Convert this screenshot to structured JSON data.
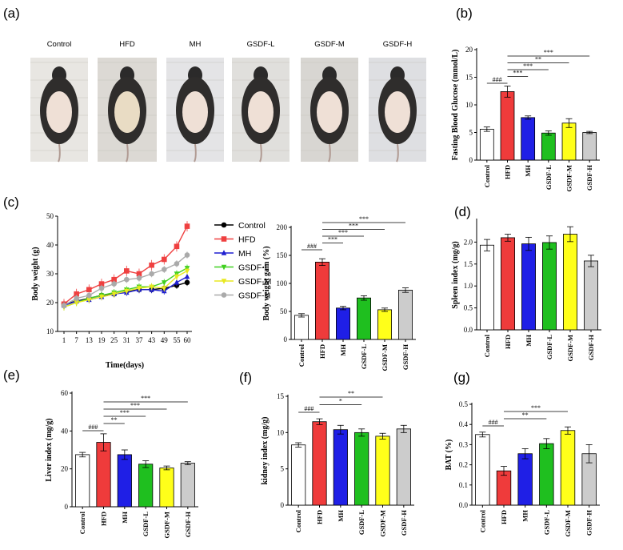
{
  "photos": {
    "panel": "(a)",
    "labels": [
      "Control",
      "HFD",
      "MH",
      "GSDF-L",
      "GSDF-M",
      "GSDF-H"
    ]
  },
  "colors": {
    "Control": "#ffffff",
    "HFD": "#ef3b3b",
    "MH": "#1f1fe6",
    "GSDF-L": "#1fbf1f",
    "GSDF-M": "#ffff1a",
    "GSDF-H": "#cccccc"
  },
  "line_colors": [
    "#000000",
    "#ef4040",
    "#1f1fd0",
    "#40d020",
    "#e8e820",
    "#aaaaaa"
  ],
  "chart_data": [
    {
      "id": "b",
      "panel": "(b)",
      "type": "bar",
      "ylabel": "Fasting Blood Glucose (mmol/L)",
      "categories": [
        "Control",
        "HFD",
        "MH",
        "GSDF-L",
        "GSDF-M",
        "GSDF-H"
      ],
      "values": [
        5.6,
        12.4,
        7.7,
        4.9,
        6.7,
        5.0
      ],
      "errors": [
        0.4,
        1.0,
        0.3,
        0.4,
        0.8,
        0.2
      ],
      "ylim": [
        0,
        20
      ],
      "yticks": [
        "0",
        "5",
        "10",
        "15",
        "20"
      ],
      "annotations": [
        {
          "from": 0,
          "to": 1,
          "label": "###"
        },
        {
          "from": 1,
          "to": 2,
          "label": "***"
        },
        {
          "from": 1,
          "to": 3,
          "label": "***"
        },
        {
          "from": 1,
          "to": 4,
          "label": "**"
        },
        {
          "from": 1,
          "to": 5,
          "label": "***"
        }
      ]
    },
    {
      "id": "c_line",
      "panel": "(c)",
      "type": "line",
      "xlabel": "Time(days)",
      "ylabel": "Body weight (g)",
      "x": [
        1,
        7,
        13,
        19,
        25,
        31,
        37,
        43,
        49,
        55,
        60
      ],
      "ylim": [
        10,
        50
      ],
      "yticks": [
        "10",
        "20",
        "30",
        "40",
        "50"
      ],
      "xticks": [
        "1",
        "7",
        "13",
        "19",
        "25",
        "31",
        "37",
        "43",
        "49",
        "55",
        "60"
      ],
      "series": [
        {
          "name": "Control",
          "marker": "circle",
          "values": [
            19.5,
            20.5,
            21.5,
            22.5,
            23.0,
            24.0,
            24.5,
            24.5,
            25.0,
            26.0,
            27.0
          ]
        },
        {
          "name": "HFD",
          "marker": "square",
          "values": [
            19.5,
            23.0,
            24.5,
            26.5,
            28.0,
            31.0,
            30.0,
            33.0,
            35.0,
            39.5,
            46.5
          ]
        },
        {
          "name": "MH",
          "marker": "triangle",
          "values": [
            19.0,
            20.5,
            21.0,
            22.0,
            23.0,
            23.5,
            24.5,
            24.5,
            24.0,
            27.0,
            29.0
          ]
        },
        {
          "name": "GSDF-L",
          "marker": "triangle-down",
          "values": [
            18.5,
            20.0,
            21.5,
            22.5,
            23.5,
            24.5,
            25.5,
            25.5,
            27.0,
            30.0,
            32.0
          ]
        },
        {
          "name": "GSDF-M",
          "marker": "triangle-down",
          "values": [
            18.5,
            20.0,
            21.0,
            22.0,
            23.0,
            24.0,
            25.0,
            25.5,
            25.0,
            29.0,
            31.0
          ]
        },
        {
          "name": "GSDF-H",
          "marker": "circle",
          "values": [
            19.0,
            21.5,
            22.5,
            25.0,
            26.5,
            28.0,
            28.5,
            30.0,
            31.5,
            33.5,
            36.5
          ]
        }
      ]
    },
    {
      "id": "c_bar",
      "type": "bar",
      "ylabel": "Body weight gain (%)",
      "categories": [
        "Control",
        "HFD",
        "MH",
        "GSDF-L",
        "GSDF-M",
        "GSDF-H"
      ],
      "values": [
        43,
        138,
        56,
        74,
        53,
        88
      ],
      "errors": [
        3,
        6,
        3,
        4,
        3,
        4
      ],
      "ylim": [
        0,
        200
      ],
      "yticks": [
        "0",
        "50",
        "100",
        "150",
        "200"
      ],
      "annotations": [
        {
          "from": 0,
          "to": 1,
          "label": "###"
        },
        {
          "from": 1,
          "to": 2,
          "label": "***"
        },
        {
          "from": 1,
          "to": 3,
          "label": "***"
        },
        {
          "from": 1,
          "to": 4,
          "label": "***"
        },
        {
          "from": 1,
          "to": 5,
          "label": "***"
        }
      ]
    },
    {
      "id": "d",
      "panel": "(d)",
      "type": "bar",
      "ylabel": "Spleen index (mg/g)",
      "categories": [
        "Control",
        "HFD",
        "MH",
        "GSDF-L",
        "GSDF-M",
        "GSDF-H"
      ],
      "values": [
        1.93,
        2.1,
        1.96,
        1.99,
        2.18,
        1.57
      ],
      "errors": [
        0.13,
        0.08,
        0.15,
        0.15,
        0.17,
        0.13
      ],
      "ylim": [
        0,
        2.5
      ],
      "yticks": [
        "0.0",
        "0.5",
        "1.0",
        "1.5",
        "2.0"
      ],
      "annotations": []
    },
    {
      "id": "e",
      "panel": "(e)",
      "type": "bar",
      "ylabel": "Liver index (mg/g)",
      "categories": [
        "Control",
        "HFD",
        "MH",
        "GSDF-L",
        "GSDF-M",
        "GSDF-H"
      ],
      "values": [
        27.5,
        34.0,
        27.5,
        22.5,
        20.5,
        23.0
      ],
      "errors": [
        1.2,
        4.5,
        2.5,
        1.8,
        1.0,
        0.8
      ],
      "ylim": [
        0,
        60
      ],
      "yticks": [
        "0",
        "20",
        "40",
        "60"
      ],
      "annotations": [
        {
          "from": 0,
          "to": 1,
          "label": "###"
        },
        {
          "from": 1,
          "to": 2,
          "label": "**"
        },
        {
          "from": 1,
          "to": 3,
          "label": "***"
        },
        {
          "from": 1,
          "to": 4,
          "label": "***"
        },
        {
          "from": 1,
          "to": 5,
          "label": "***"
        }
      ]
    },
    {
      "id": "f",
      "panel": "(f)",
      "type": "bar",
      "ylabel": "kidney index (mg/g)",
      "categories": [
        "Control",
        "HFD",
        "MH",
        "GSDF-L",
        "GSDF-M",
        "GSDF-H"
      ],
      "values": [
        8.3,
        11.5,
        10.4,
        10.0,
        9.5,
        10.5
      ],
      "errors": [
        0.3,
        0.4,
        0.6,
        0.5,
        0.4,
        0.5
      ],
      "ylim": [
        0,
        15
      ],
      "yticks": [
        "0",
        "5",
        "10",
        "15"
      ],
      "annotations": [
        {
          "from": 0,
          "to": 1,
          "label": "###"
        },
        {
          "from": 1,
          "to": 3,
          "label": "*"
        },
        {
          "from": 1,
          "to": 4,
          "label": "**"
        }
      ]
    },
    {
      "id": "g",
      "panel": "(g)",
      "type": "bar",
      "ylabel": "BAT (%)",
      "categories": [
        "Control",
        "HFD",
        "MH",
        "GSDF-L",
        "GSDF-M",
        "GSDF-H"
      ],
      "values": [
        0.35,
        0.17,
        0.255,
        0.305,
        0.37,
        0.255
      ],
      "errors": [
        0.012,
        0.022,
        0.025,
        0.025,
        0.018,
        0.045
      ],
      "ylim": [
        0,
        0.5
      ],
      "yticks": [
        "0.0",
        "0.1",
        "0.2",
        "0.3",
        "0.4",
        "0.5"
      ],
      "annotations": [
        {
          "from": 0,
          "to": 1,
          "label": "###"
        },
        {
          "from": 1,
          "to": 3,
          "label": "**"
        },
        {
          "from": 1,
          "to": 4,
          "label": "***"
        }
      ]
    }
  ]
}
